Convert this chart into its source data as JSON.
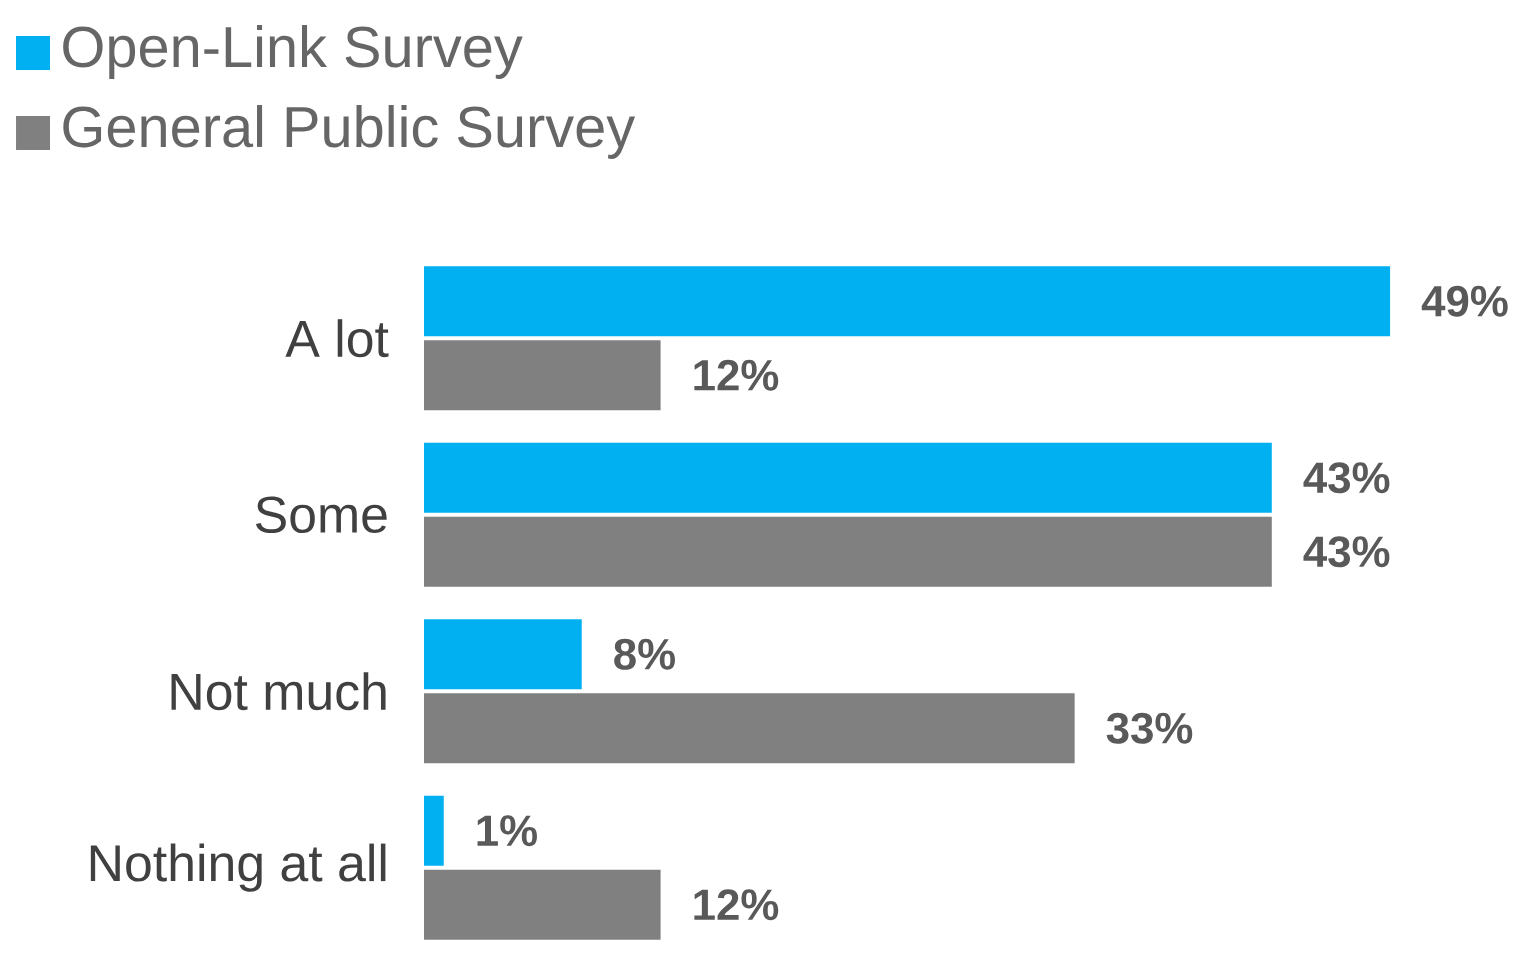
{
  "chart_data": {
    "type": "bar",
    "orientation": "horizontal",
    "categories": [
      "A lot",
      "Some",
      "Not much",
      "Nothing at all"
    ],
    "series": [
      {
        "name": "Open-Link Survey",
        "color": "#00b0f0",
        "values": [
          49,
          43,
          8,
          1
        ],
        "value_labels": [
          "49%",
          "43%",
          "8%",
          "1%"
        ]
      },
      {
        "name": "General Public Survey",
        "color": "#808080",
        "values": [
          12,
          43,
          33,
          12
        ],
        "value_labels": [
          "12%",
          "43%",
          "33%",
          "12%"
        ]
      }
    ],
    "legend": "top left"
  }
}
